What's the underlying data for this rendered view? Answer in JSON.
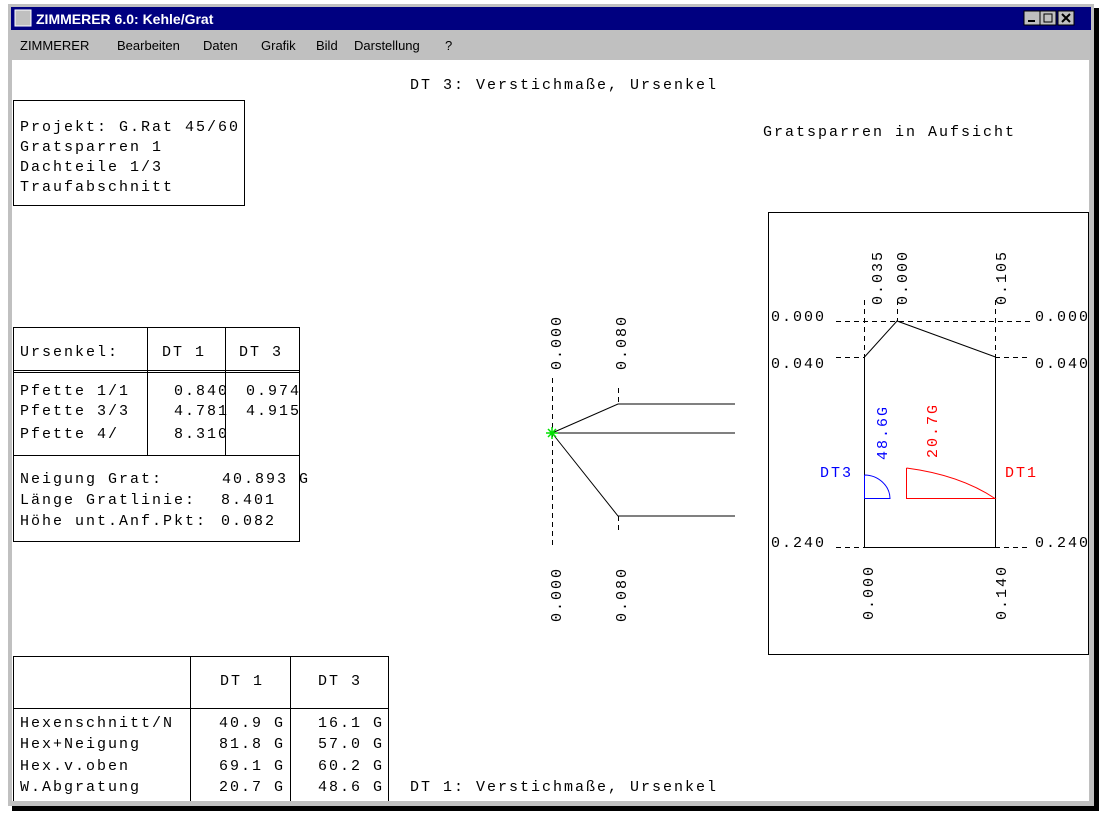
{
  "window": {
    "title": "ZIMMERER 6.0: Kehle/Grat",
    "menu": [
      "ZIMMERER",
      "Bearbeiten",
      "Daten",
      "Grafik",
      "Bild",
      "Darstellung",
      "?"
    ]
  },
  "top_caption": "DT 3: Verstichmaße, Ursenkel",
  "bottom_caption": "DT 1: Verstichmaße, Ursenkel",
  "project": {
    "lines": [
      "Projekt: G.Rat 45/60",
      "Gratsparren 1",
      "Dachteile 1/3",
      "Traufabschnitt"
    ]
  },
  "ursenkel_table": {
    "header": [
      "Ursenkel:",
      "DT 1",
      "DT 3"
    ],
    "rows": [
      [
        "Pfette 1/1",
        "0.840",
        "0.974"
      ],
      [
        "Pfette 3/3",
        "4.781",
        "4.915"
      ],
      [
        "Pfette 4/",
        "8.310"
      ]
    ],
    "summary": [
      [
        "Neigung Grat:",
        "40.893 G"
      ],
      [
        "Länge Gratlinie:",
        "8.401"
      ],
      [
        "Höhe unt.Anf.Pkt:",
        "0.082"
      ]
    ]
  },
  "angle_table": {
    "header": [
      "DT 1",
      "DT 3"
    ],
    "rows": [
      [
        "Hexenschnitt/N",
        "40.9 G",
        "16.1 G"
      ],
      [
        "Hex+Neigung",
        "81.8 G",
        "57.0 G"
      ],
      [
        "Hex.v.oben",
        "69.1 G",
        "60.2 G"
      ],
      [
        "W.Abgratung",
        "20.7 G",
        "48.6 G"
      ]
    ]
  },
  "section_view": {
    "labels_top": [
      "0.000",
      "0.080"
    ],
    "labels_bottom": [
      "0.000",
      "0.080"
    ]
  },
  "plan_view": {
    "title": "Gratsparren in Aufsicht",
    "top": [
      "0.035",
      "0.000",
      "0.105"
    ],
    "left": [
      "0.000",
      "0.040",
      "0.240"
    ],
    "right": [
      "0.000",
      "0.040",
      "0.240"
    ],
    "bottom": [
      "0.000",
      "0.140"
    ],
    "dt3": {
      "label": "DT3",
      "angle": "48.6G"
    },
    "dt1": {
      "label": "DT1",
      "angle": "20.7G"
    }
  }
}
